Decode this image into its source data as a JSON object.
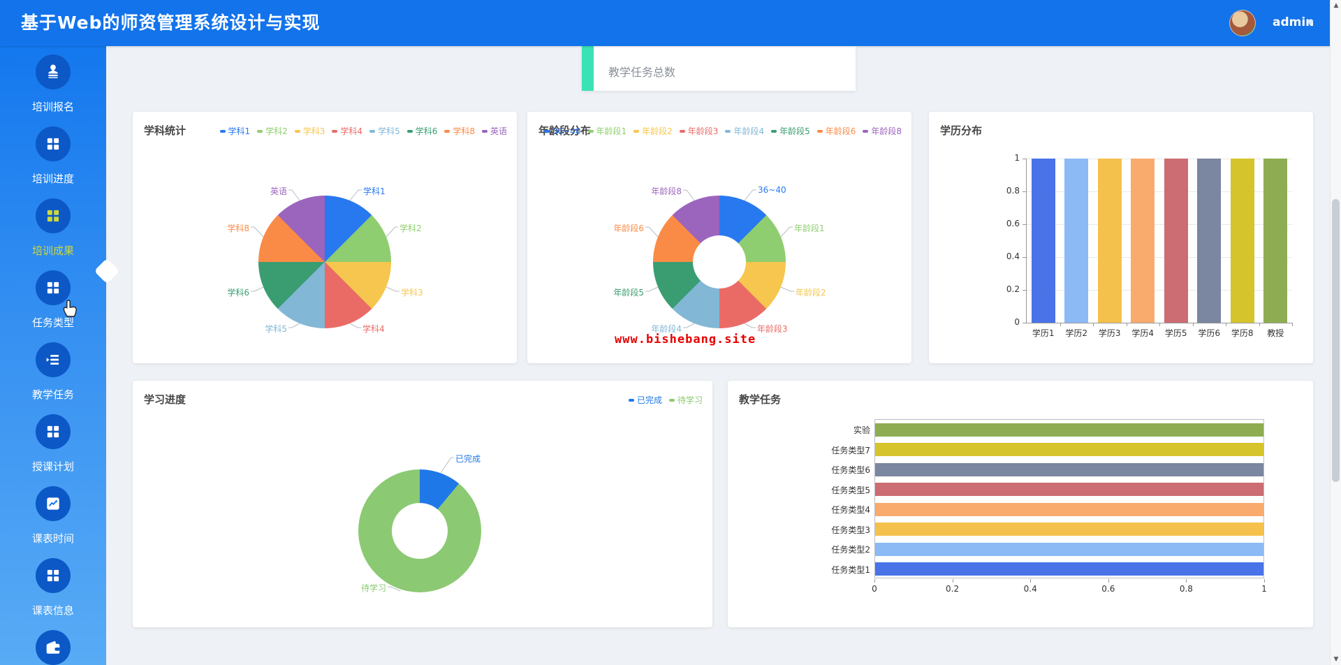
{
  "header": {
    "title": "基于Web的师资管理系统设计与实现",
    "user": "admin"
  },
  "sidebar": {
    "items": [
      {
        "label": "培训报名",
        "icon": "stamp-icon",
        "active": false
      },
      {
        "label": "培训进度",
        "icon": "grid-icon",
        "active": false
      },
      {
        "label": "培训成果",
        "icon": "grid-icon",
        "active": true
      },
      {
        "label": "任务类型",
        "icon": "grid-icon",
        "active": false
      },
      {
        "label": "教学任务",
        "icon": "list-icon",
        "active": false
      },
      {
        "label": "授课计划",
        "icon": "grid-icon",
        "active": false
      },
      {
        "label": "课表时间",
        "icon": "chart-icon",
        "active": false
      },
      {
        "label": "课表信息",
        "icon": "grid-icon",
        "active": false
      },
      {
        "label": "",
        "icon": "wallet-icon",
        "active": false
      }
    ]
  },
  "top_card": {
    "label": "教学任务总数",
    "accent_color": "#3be2b6"
  },
  "watermark": {
    "text": "www.bishebang.site",
    "color": "#e60000"
  },
  "chart_data": [
    {
      "id": "subject",
      "type": "pie",
      "title": "学科统计",
      "labels": [
        "学科1",
        "学科2",
        "学科3",
        "学科4",
        "学科5",
        "学科6",
        "学科8",
        "英语"
      ],
      "values": [
        12.5,
        12.5,
        12.5,
        12.5,
        12.5,
        12.5,
        12.5,
        12.5
      ],
      "colors": [
        "#2878f0",
        "#8fce70",
        "#f6c64e",
        "#ea6b66",
        "#82b7d6",
        "#3a9d71",
        "#f98b47",
        "#9b64bd"
      ],
      "legend_position": "top-right"
    },
    {
      "id": "age",
      "type": "donut",
      "title": "年龄段分布",
      "labels": [
        "36~40",
        "年龄段1",
        "年龄段2",
        "年龄段3",
        "年龄段4",
        "年龄段5",
        "年龄段6",
        "年龄段8"
      ],
      "values": [
        12.5,
        12.5,
        12.5,
        12.5,
        12.5,
        12.5,
        12.5,
        12.5
      ],
      "colors": [
        "#2878f0",
        "#8fce70",
        "#f6c64e",
        "#ea6b66",
        "#82b7d6",
        "#3a9d71",
        "#f98b47",
        "#9b64bd"
      ],
      "legend_position": "top-right"
    },
    {
      "id": "education",
      "type": "bar",
      "title": "学历分布",
      "categories": [
        "学历1",
        "学历2",
        "学历3",
        "学历4",
        "学历5",
        "学历6",
        "学历8",
        "教授"
      ],
      "values": [
        1,
        1,
        1,
        1,
        1,
        1,
        1,
        1
      ],
      "colors": [
        "#4a73e8",
        "#8cbaf5",
        "#f5c14d",
        "#f8ab6d",
        "#cb6d72",
        "#7b86a0",
        "#d5c42b",
        "#8ead52"
      ],
      "ylim": [
        0,
        1
      ],
      "yticks": [
        "1",
        "0.8",
        "0.6",
        "0.4",
        "0.2",
        "0"
      ],
      "grid": true
    },
    {
      "id": "progress",
      "type": "donut",
      "title": "学习进度",
      "labels": [
        "已完成",
        "待学习"
      ],
      "values": [
        11,
        89
      ],
      "colors": [
        "#1f78e8",
        "#8cc973"
      ],
      "legend_position": "top-right"
    },
    {
      "id": "task",
      "type": "hbar",
      "title": "教学任务",
      "categories": [
        "实验",
        "任务类型7",
        "任务类型6",
        "任务类型5",
        "任务类型4",
        "任务类型3",
        "任务类型2",
        "任务类型1"
      ],
      "values": [
        1,
        1,
        1,
        1,
        1,
        1,
        1,
        1
      ],
      "colors": [
        "#8ead52",
        "#d5c42b",
        "#7b86a0",
        "#cb6d72",
        "#f8ab6d",
        "#f5c14d",
        "#8cbaf5",
        "#4a73e8"
      ],
      "xlim": [
        0,
        1
      ],
      "xticks": [
        "0",
        "0.2",
        "0.4",
        "0.6",
        "0.8",
        "1"
      ]
    }
  ]
}
